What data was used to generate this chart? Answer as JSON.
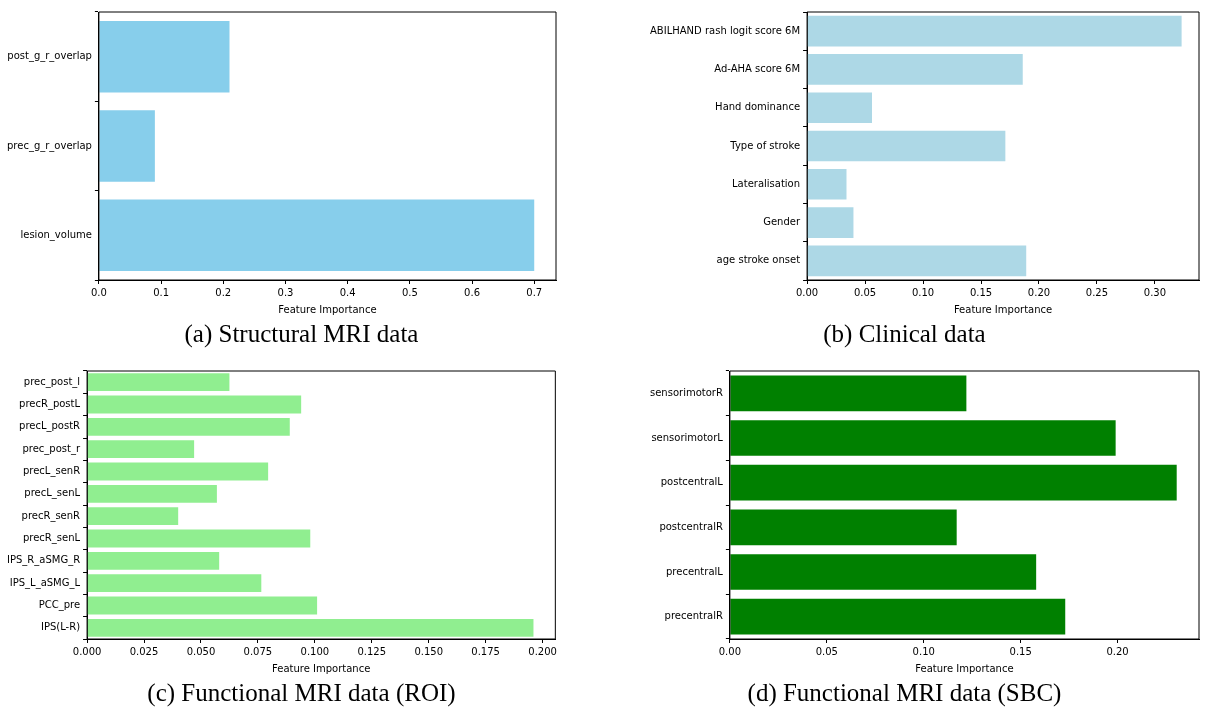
{
  "chart_data": [
    {
      "type": "bar",
      "orientation": "horizontal",
      "xlabel": "Feature Importance",
      "annotations": [
        "(a) Structural MRI data"
      ],
      "categories": [
        "post_g_r_overlap",
        "prec_g_r_overlap",
        "lesion_volume"
      ],
      "values": [
        0.21,
        0.09,
        0.7
      ],
      "color": "#87ceeb",
      "xlim": [
        0,
        0.735
      ],
      "xticks": [
        {
          "value": 0,
          "label": "0.0"
        },
        {
          "value": 0.1,
          "label": "0.1"
        },
        {
          "value": 0.2,
          "label": "0.2"
        },
        {
          "value": 0.3,
          "label": "0.3"
        },
        {
          "value": 0.4,
          "label": "0.4"
        },
        {
          "value": 0.5,
          "label": "0.5"
        },
        {
          "value": 0.6,
          "label": "0.6"
        },
        {
          "value": 0.7,
          "label": "0.7"
        }
      ]
    },
    {
      "type": "bar",
      "orientation": "horizontal",
      "xlabel": "Feature Importance",
      "annotations": [
        "(b) Clinical data"
      ],
      "categories": [
        "ABILHAND rash logit score 6M",
        "Ad-AHA score 6M",
        "Hand dominance",
        "Type of stroke",
        "Lateralisation",
        "Gender",
        "age stroke onset"
      ],
      "values": [
        0.323,
        0.186,
        0.056,
        0.171,
        0.034,
        0.04,
        0.189
      ],
      "color": "#add8e6",
      "xlim": [
        0,
        0.338
      ],
      "xticks": [
        {
          "value": 0,
          "label": "0.00"
        },
        {
          "value": 0.05,
          "label": "0.05"
        },
        {
          "value": 0.1,
          "label": "0.10"
        },
        {
          "value": 0.15,
          "label": "0.15"
        },
        {
          "value": 0.2,
          "label": "0.20"
        },
        {
          "value": 0.25,
          "label": "0.25"
        },
        {
          "value": 0.3,
          "label": "0.30"
        }
      ]
    },
    {
      "type": "bar",
      "orientation": "horizontal",
      "xlabel": "Feature Importance",
      "annotations": [
        "(c) Functional MRI data (ROI)"
      ],
      "categories": [
        "prec_post_l",
        "precR_postL",
        "precL_postR",
        "prec_post_r",
        "precL_senR",
        "precL_senL",
        "precR_senR",
        "precR_senL",
        "IPS_R_aSMG_R",
        "IPS_L_aSMG_L",
        "PCC_pre",
        "IPS(L-R)"
      ],
      "values": [
        0.0625,
        0.094,
        0.089,
        0.047,
        0.0795,
        0.057,
        0.04,
        0.098,
        0.058,
        0.0765,
        0.101,
        0.196
      ],
      "color": "#90ee90",
      "xlim": [
        0,
        0.2056
      ],
      "xticks": [
        {
          "value": 0,
          "label": "0.000"
        },
        {
          "value": 0.025,
          "label": "0.025"
        },
        {
          "value": 0.05,
          "label": "0.050"
        },
        {
          "value": 0.075,
          "label": "0.075"
        },
        {
          "value": 0.1,
          "label": "0.100"
        },
        {
          "value": 0.125,
          "label": "0.125"
        },
        {
          "value": 0.15,
          "label": "0.150"
        },
        {
          "value": 0.175,
          "label": "0.175"
        },
        {
          "value": 0.2,
          "label": "0.200"
        }
      ]
    },
    {
      "type": "bar",
      "orientation": "horizontal",
      "xlabel": "Feature Importance",
      "annotations": [
        "(d) Functional MRI data (SBC)"
      ],
      "categories": [
        "sensorimotorR",
        "sensorimotorL",
        "postcentralL",
        "postcentralR",
        "precentralL",
        "precentralR"
      ],
      "values": [
        0.122,
        0.199,
        0.2305,
        0.117,
        0.158,
        0.173
      ],
      "color": "#008000",
      "xlim": [
        0,
        0.242
      ],
      "xticks": [
        {
          "value": 0,
          "label": "0.00"
        },
        {
          "value": 0.05,
          "label": "0.05"
        },
        {
          "value": 0.1,
          "label": "0.10"
        },
        {
          "value": 0.15,
          "label": "0.15"
        },
        {
          "value": 0.2,
          "label": "0.20"
        }
      ]
    }
  ]
}
